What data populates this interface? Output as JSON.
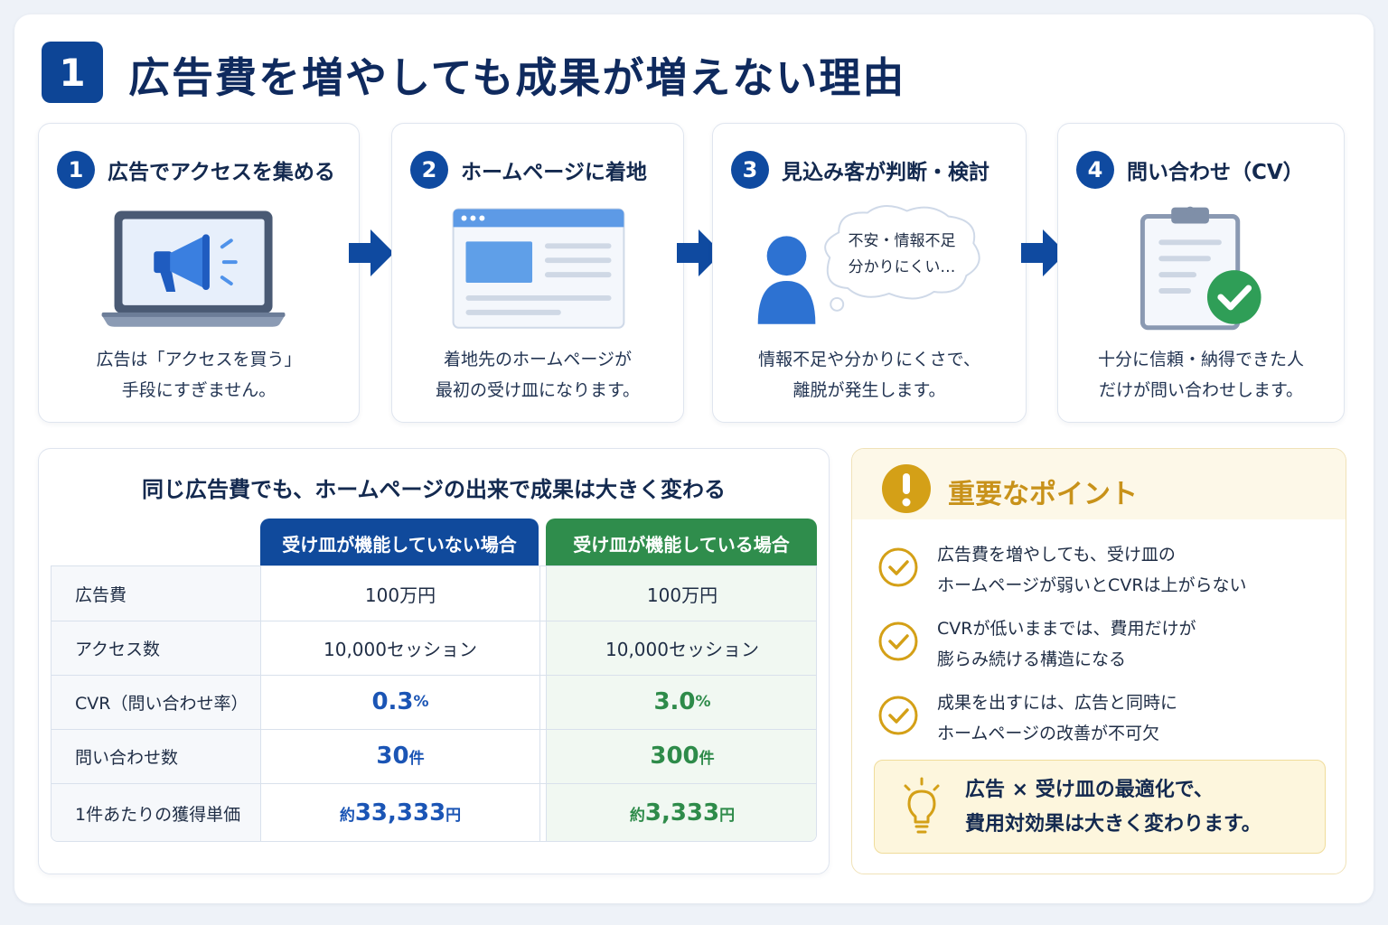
{
  "title": {
    "number": "1",
    "text": "広告費を増やしても成果が増えない理由"
  },
  "steps": [
    {
      "number": "1",
      "title": "広告でアクセスを集める",
      "desc": [
        "広告は「アクセスを買う」",
        "手段にすぎません。"
      ]
    },
    {
      "number": "2",
      "title": "ホームページに着地",
      "desc": [
        "着地先のホームページが",
        "最初の受け皿になります。"
      ]
    },
    {
      "number": "3",
      "title": "見込み客が判断・検討",
      "bubble": [
        "不安・情報不足",
        "分かりにくい…"
      ],
      "desc": [
        "情報不足や分かりにくさで、",
        "離脱が発生します。"
      ]
    },
    {
      "number": "4",
      "title": "問い合わせ（CV）",
      "desc": [
        "十分に信頼・納得できた人",
        "だけが問い合わせします。"
      ]
    }
  ],
  "comparison": {
    "title": "同じ広告費でも、ホームページの出来で成果は大きく変わる",
    "headers": {
      "col_a": "受け皿が機能していない場合",
      "col_b": "受け皿が機能している場合"
    },
    "rows": [
      {
        "label": "広告費",
        "a": "100万円",
        "b": "100万円"
      },
      {
        "label": "アクセス数",
        "a": "10,000セッション",
        "b": "10,000セッション"
      },
      {
        "label": "CVR（問い合わせ率）",
        "a_num": "0.3",
        "a_unit": "%",
        "b_num": "3.0",
        "b_unit": "%"
      },
      {
        "label": "問い合わせ数",
        "a_num": "30",
        "a_unit": "件",
        "b_num": "300",
        "b_unit": "件"
      },
      {
        "label": "1件あたりの獲得単価",
        "a_pre": "約",
        "a_num": "33,333",
        "a_unit": "円",
        "b_pre": "約",
        "b_num": "3,333",
        "b_unit": "円"
      }
    ]
  },
  "points": {
    "title": "重要なポイント",
    "items": [
      [
        "広告費を増やしても、受け皿の",
        "ホームページが弱いとCVRは上がらない"
      ],
      [
        "CVRが低いままでは、費用だけが",
        "膨らみ続ける構造になる"
      ],
      [
        "成果を出すには、広告と同時に",
        "ホームページの改善が不可欠"
      ]
    ],
    "tip": [
      "広告 × 受け皿の最適化で、",
      "費用対効果は大きく変わります。"
    ]
  },
  "colors": {
    "navy": "#0d4596",
    "blue_text": "#1b55b5",
    "green_head": "#2f8d4c",
    "gold": "#d4a017"
  }
}
